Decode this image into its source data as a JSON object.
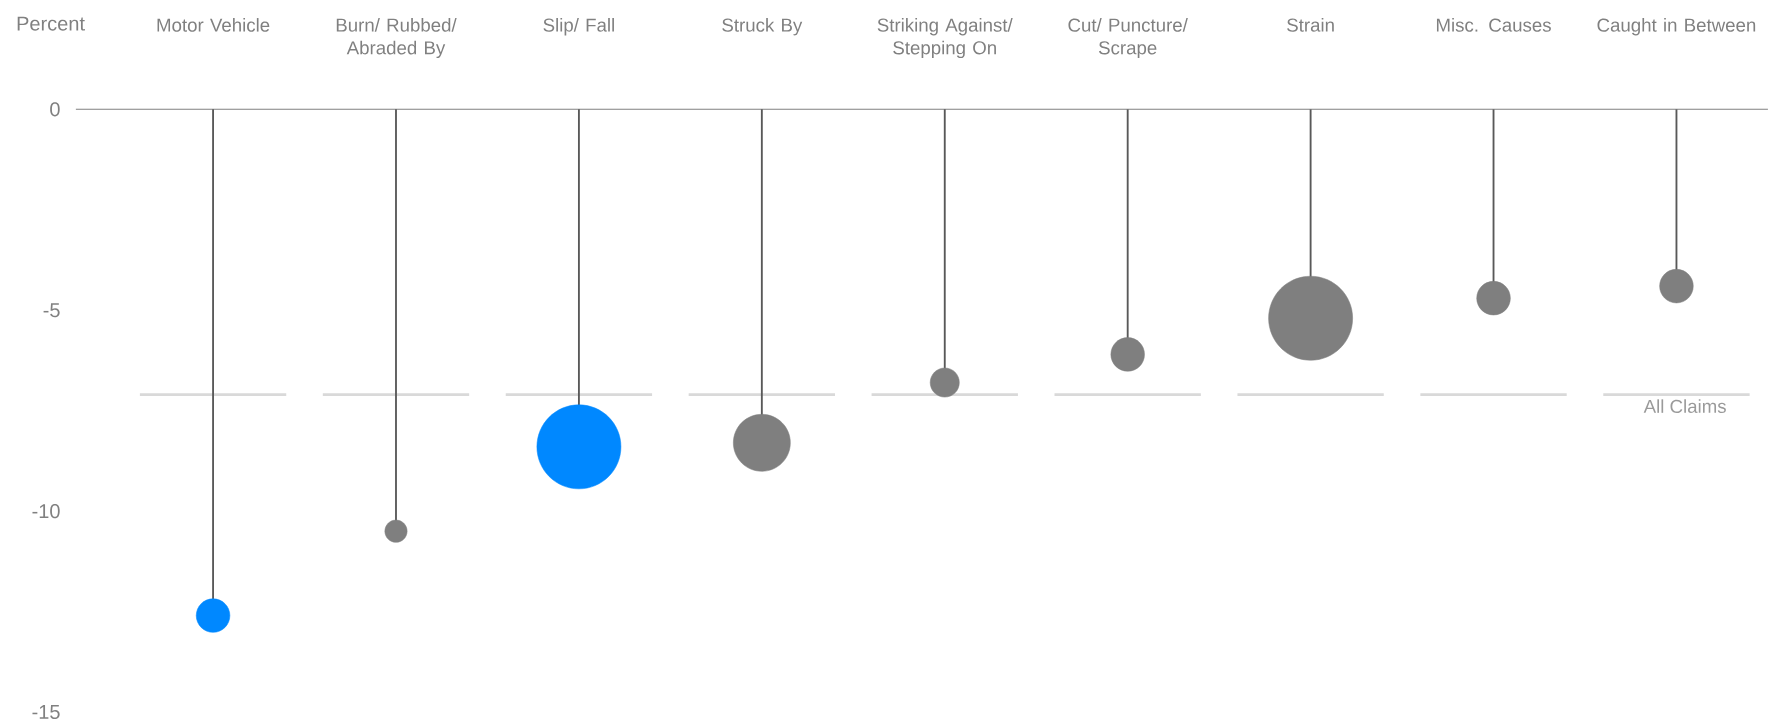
{
  "chart_data": {
    "type": "lollipop",
    "ylabel": "Percent",
    "categories": [
      "Motor Vehicle",
      "Burn/ Rubbed/ Abraded By",
      "Slip/ Fall",
      "Struck By",
      "Striking Against/ Stepping On",
      "Cut/ Puncture/ Scrape",
      "Strain",
      "Misc. Causes",
      "Caught in Between"
    ],
    "values": [
      -12.6,
      -10.5,
      -8.4,
      -8.3,
      -6.8,
      -6.1,
      -5.2,
      -4.7,
      -4.4
    ],
    "sizes": [
      0.16,
      0.07,
      1,
      0.46,
      0.12,
      0.16,
      1,
      0.16,
      0.16
    ],
    "colors": [
      "#0088ff",
      "#7f7f7f",
      "#0088ff",
      "#7f7f7f",
      "#7f7f7f",
      "#7f7f7f",
      "#7f7f7f",
      "#7f7f7f",
      "#7f7f7f"
    ],
    "ylim": [
      -15,
      0
    ],
    "yticks": [
      0,
      -5,
      -10,
      -15
    ],
    "ref_lines": [
      {
        "axis": "y",
        "value": -7.1,
        "label": "All Claims",
        "color": "#d9d9d9"
      }
    ]
  }
}
